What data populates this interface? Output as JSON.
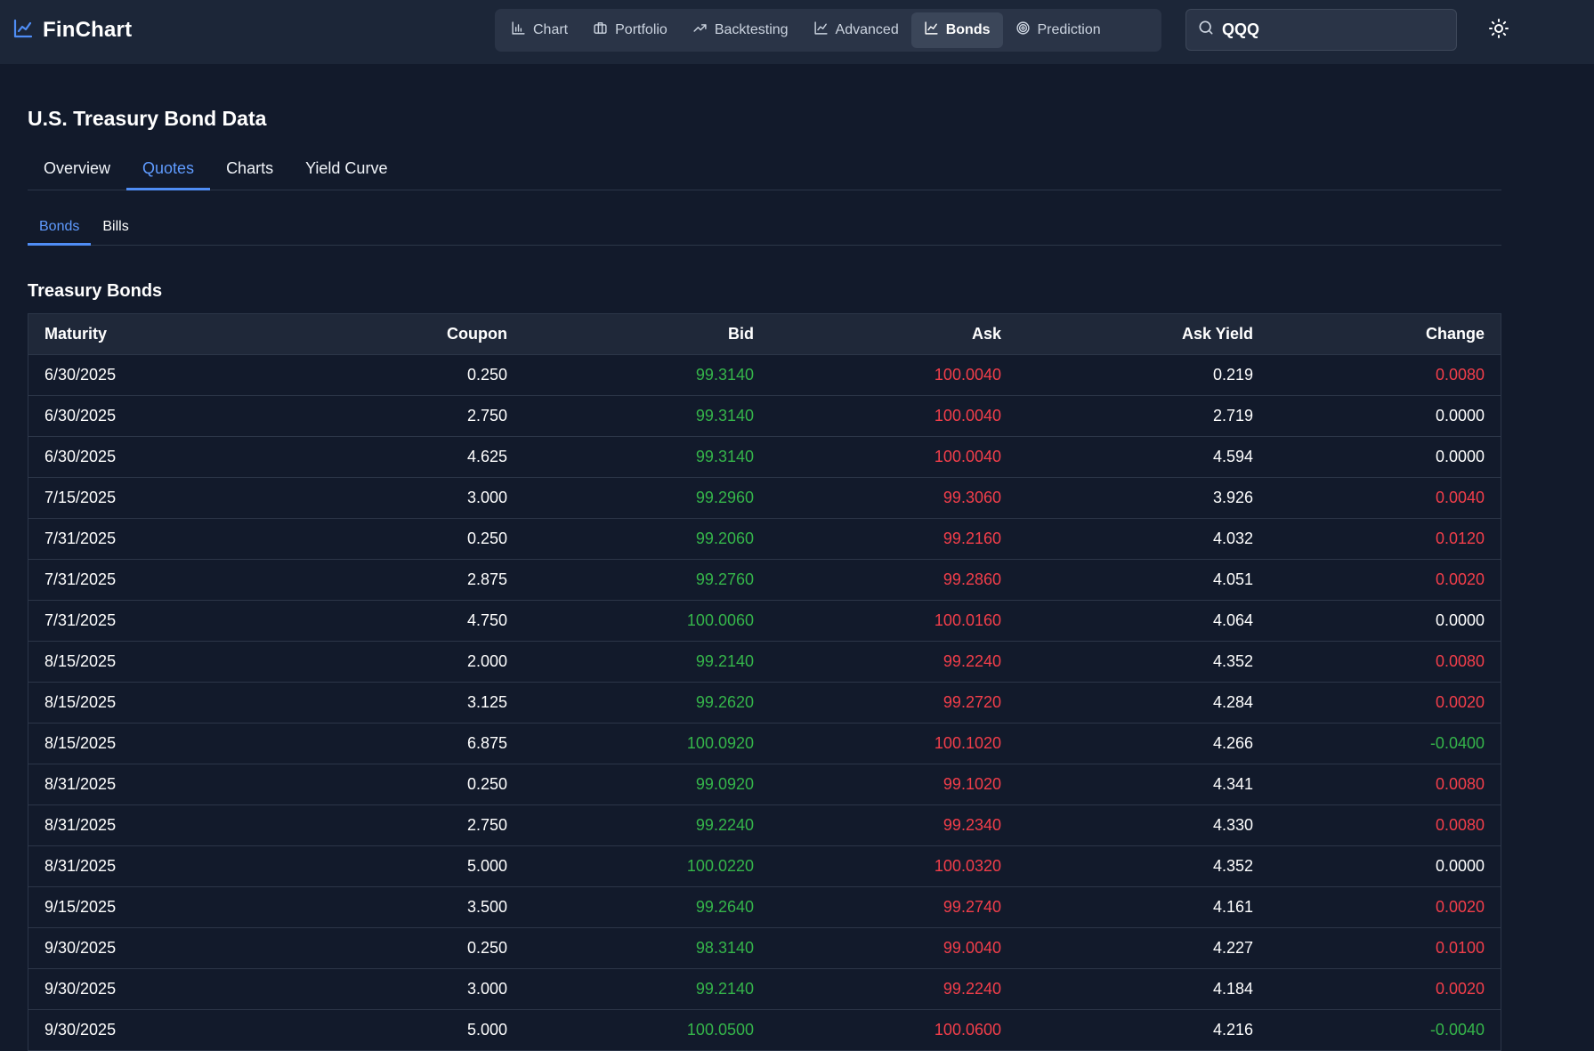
{
  "app": {
    "name": "FinChart",
    "logo_icon": "line-chart-icon",
    "accent_color": "#4f8df5"
  },
  "nav": {
    "items": [
      {
        "label": "Chart",
        "icon": "bar-chart-icon",
        "active": false
      },
      {
        "label": "Portfolio",
        "icon": "briefcase-icon",
        "active": false
      },
      {
        "label": "Backtesting",
        "icon": "trending-up-icon",
        "active": false
      },
      {
        "label": "Advanced",
        "icon": "line-chart-icon",
        "active": false
      },
      {
        "label": "Bonds",
        "icon": "line-chart-icon",
        "active": true
      },
      {
        "label": "Prediction",
        "icon": "target-icon",
        "active": false
      }
    ]
  },
  "search": {
    "value": "QQQ",
    "icon": "search-icon"
  },
  "theme_toggle": {
    "icon": "sun-icon"
  },
  "page": {
    "title": "U.S. Treasury Bond Data",
    "tabs": [
      {
        "label": "Overview",
        "active": false
      },
      {
        "label": "Quotes",
        "active": true
      },
      {
        "label": "Charts",
        "active": false
      },
      {
        "label": "Yield Curve",
        "active": false
      }
    ],
    "subtabs": [
      {
        "label": "Bonds",
        "active": true
      },
      {
        "label": "Bills",
        "active": false
      }
    ],
    "section_title": "Treasury Bonds"
  },
  "table": {
    "columns": [
      "Maturity",
      "Coupon",
      "Bid",
      "Ask",
      "Ask Yield",
      "Change"
    ],
    "colors": {
      "bid": "#35b54a",
      "ask": "#f23e4a",
      "change_positive": "#f23e4a",
      "change_negative": "#35b54a",
      "change_zero": "#ffffff"
    },
    "rows": [
      {
        "maturity": "6/30/2025",
        "coupon": "0.250",
        "bid": "99.3140",
        "ask": "100.0040",
        "ask_yield": "0.219",
        "change": "0.0080"
      },
      {
        "maturity": "6/30/2025",
        "coupon": "2.750",
        "bid": "99.3140",
        "ask": "100.0040",
        "ask_yield": "2.719",
        "change": "0.0000"
      },
      {
        "maturity": "6/30/2025",
        "coupon": "4.625",
        "bid": "99.3140",
        "ask": "100.0040",
        "ask_yield": "4.594",
        "change": "0.0000"
      },
      {
        "maturity": "7/15/2025",
        "coupon": "3.000",
        "bid": "99.2960",
        "ask": "99.3060",
        "ask_yield": "3.926",
        "change": "0.0040"
      },
      {
        "maturity": "7/31/2025",
        "coupon": "0.250",
        "bid": "99.2060",
        "ask": "99.2160",
        "ask_yield": "4.032",
        "change": "0.0120"
      },
      {
        "maturity": "7/31/2025",
        "coupon": "2.875",
        "bid": "99.2760",
        "ask": "99.2860",
        "ask_yield": "4.051",
        "change": "0.0020"
      },
      {
        "maturity": "7/31/2025",
        "coupon": "4.750",
        "bid": "100.0060",
        "ask": "100.0160",
        "ask_yield": "4.064",
        "change": "0.0000"
      },
      {
        "maturity": "8/15/2025",
        "coupon": "2.000",
        "bid": "99.2140",
        "ask": "99.2240",
        "ask_yield": "4.352",
        "change": "0.0080"
      },
      {
        "maturity": "8/15/2025",
        "coupon": "3.125",
        "bid": "99.2620",
        "ask": "99.2720",
        "ask_yield": "4.284",
        "change": "0.0020"
      },
      {
        "maturity": "8/15/2025",
        "coupon": "6.875",
        "bid": "100.0920",
        "ask": "100.1020",
        "ask_yield": "4.266",
        "change": "-0.0400"
      },
      {
        "maturity": "8/31/2025",
        "coupon": "0.250",
        "bid": "99.0920",
        "ask": "99.1020",
        "ask_yield": "4.341",
        "change": "0.0080"
      },
      {
        "maturity": "8/31/2025",
        "coupon": "2.750",
        "bid": "99.2240",
        "ask": "99.2340",
        "ask_yield": "4.330",
        "change": "0.0080"
      },
      {
        "maturity": "8/31/2025",
        "coupon": "5.000",
        "bid": "100.0220",
        "ask": "100.0320",
        "ask_yield": "4.352",
        "change": "0.0000"
      },
      {
        "maturity": "9/15/2025",
        "coupon": "3.500",
        "bid": "99.2640",
        "ask": "99.2740",
        "ask_yield": "4.161",
        "change": "0.0020"
      },
      {
        "maturity": "9/30/2025",
        "coupon": "0.250",
        "bid": "98.3140",
        "ask": "99.0040",
        "ask_yield": "4.227",
        "change": "0.0100"
      },
      {
        "maturity": "9/30/2025",
        "coupon": "3.000",
        "bid": "99.2140",
        "ask": "99.2240",
        "ask_yield": "4.184",
        "change": "0.0020"
      },
      {
        "maturity": "9/30/2025",
        "coupon": "5.000",
        "bid": "100.0500",
        "ask": "100.0600",
        "ask_yield": "4.216",
        "change": "-0.0040"
      }
    ]
  }
}
